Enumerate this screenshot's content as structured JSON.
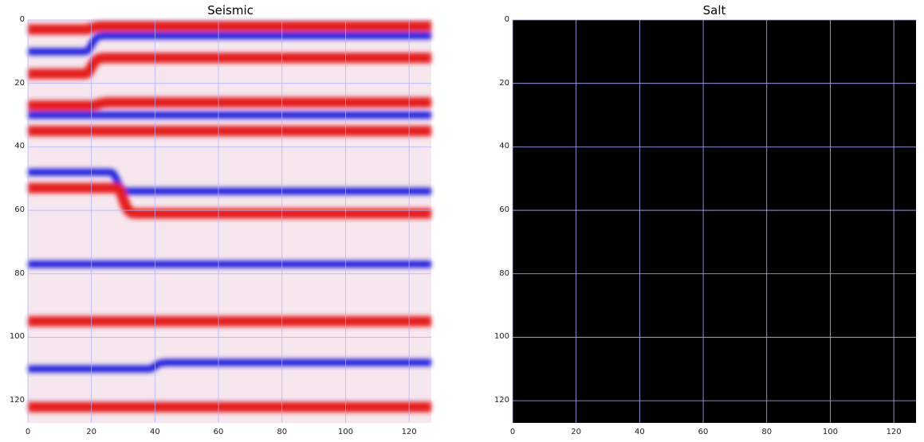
{
  "chart_data": [
    {
      "type": "heatmap",
      "title": "Seismic",
      "colormap": "seismic (blue-white-red)",
      "grid": true,
      "xlim": [
        0,
        127
      ],
      "ylim": [
        127,
        0
      ],
      "xticks": [
        "0",
        "20",
        "40",
        "60",
        "80",
        "100",
        "120"
      ],
      "yticks": [
        "0",
        "20",
        "40",
        "60",
        "80",
        "100",
        "120"
      ],
      "horizons": [
        {
          "kind": "red",
          "y_left": 3,
          "y_right": 2,
          "fault_x": 20
        },
        {
          "kind": "blue",
          "y_left": 10,
          "y_right": 5,
          "fault_x": 20
        },
        {
          "kind": "red",
          "y_left": 17,
          "y_right": 12,
          "fault_x": 20
        },
        {
          "kind": "red",
          "y_left": 27,
          "y_right": 26,
          "fault_x": 22
        },
        {
          "kind": "blue",
          "y_left": 30,
          "y_right": 30,
          "fault_x": 22
        },
        {
          "kind": "red",
          "y_left": 35,
          "y_right": 35,
          "fault_x": 24
        },
        {
          "kind": "blue",
          "y_left": 48,
          "y_right": 54,
          "fault_x": 28
        },
        {
          "kind": "red",
          "y_left": 53,
          "y_right": 61,
          "fault_x": 30
        },
        {
          "kind": "blue",
          "y_left": 77,
          "y_right": 77,
          "fault_x": 30
        },
        {
          "kind": "red",
          "y_left": 95,
          "y_right": 95,
          "fault_x": 40
        },
        {
          "kind": "blue",
          "y_left": 110,
          "y_right": 108,
          "fault_x": 40
        },
        {
          "kind": "red",
          "y_left": 122,
          "y_right": 122,
          "fault_x": 40
        }
      ]
    },
    {
      "type": "heatmap",
      "title": "Salt",
      "colormap": "all zeros (black)",
      "values": "all 0",
      "grid": true,
      "xlim": [
        0,
        127
      ],
      "ylim": [
        127,
        0
      ],
      "xticks": [
        "0",
        "20",
        "40",
        "60",
        "80",
        "100",
        "120"
      ],
      "yticks": [
        "0",
        "20",
        "40",
        "60",
        "80",
        "100",
        "120"
      ]
    }
  ],
  "colors": {
    "red": "#e41a1a",
    "blue": "#2424dd",
    "white": "#f6e6ee",
    "salt_bg": "#000000",
    "grid": "#b0b0ff"
  }
}
